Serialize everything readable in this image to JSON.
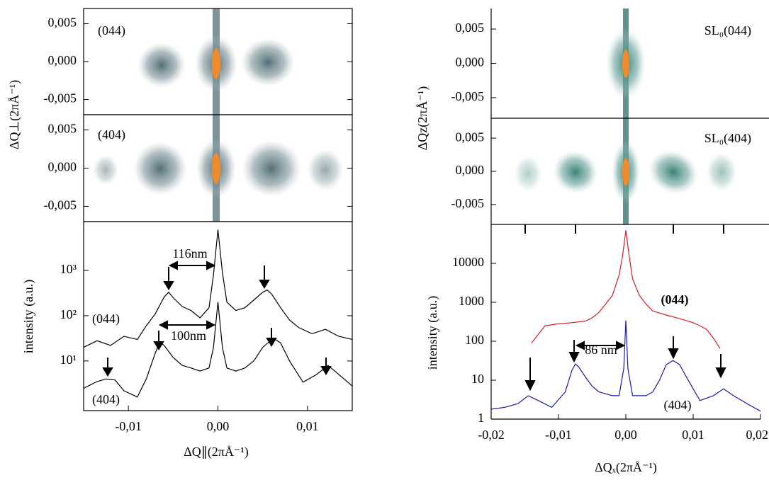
{
  "chart_data": [
    {
      "type": "map",
      "label": "(044)",
      "ylabel": "ΔQ⊥(2πÅ⁻¹)",
      "ylim": [
        -0.007,
        0.007
      ],
      "yticks": [
        {
          "value": 0.005,
          "label": "0,005"
        },
        {
          "value": 0,
          "label": "0,000"
        },
        {
          "value": -0.005,
          "label": "-0,005"
        }
      ]
    },
    {
      "type": "map",
      "label": "(404)",
      "ylim": [
        -0.007,
        0.007
      ],
      "yticks": [
        {
          "value": 0.005,
          "label": "0,005"
        },
        {
          "value": 0,
          "label": "0,000"
        },
        {
          "value": -0.005,
          "label": "-0,005"
        }
      ]
    },
    {
      "type": "line",
      "log_y": true,
      "xlabel": "ΔQ∥(2πÅ⁻¹)",
      "ylabel": "intensity (a.u.)",
      "xlim": [
        -0.015,
        0.015
      ],
      "xticks": [
        {
          "value": -0.01,
          "label": "-0,01"
        },
        {
          "value": 0,
          "label": "0,00"
        },
        {
          "value": 0.01,
          "label": "0,01"
        }
      ],
      "ylim": [
        0.8,
        12000
      ],
      "yticks": [
        {
          "value": 10,
          "label": "10¹"
        },
        {
          "value": 100,
          "label": "10²"
        },
        {
          "value": 1000,
          "label": "10³"
        }
      ],
      "annotations": [
        "116nm",
        "100nm"
      ],
      "series": [
        {
          "name": "(044)",
          "color": "#000000",
          "x": [
            -0.015,
            -0.0135,
            -0.012,
            -0.0105,
            -0.009,
            -0.008,
            -0.007,
            -0.006,
            -0.0055,
            -0.005,
            -0.004,
            -0.003,
            -0.002,
            -0.001,
            -0.0005,
            0,
            0.0005,
            0.001,
            0.002,
            0.003,
            0.004,
            0.005,
            0.0055,
            0.006,
            0.007,
            0.008,
            0.009,
            0.0105,
            0.012,
            0.0135,
            0.015
          ],
          "values": [
            20,
            28,
            22,
            35,
            30,
            60,
            110,
            260,
            330,
            250,
            160,
            130,
            90,
            150,
            800,
            8000,
            900,
            200,
            130,
            150,
            220,
            330,
            370,
            300,
            150,
            80,
            55,
            40,
            50,
            35,
            30
          ]
        },
        {
          "name": "(404)",
          "color": "#000000",
          "x": [
            -0.015,
            -0.0135,
            -0.0125,
            -0.0115,
            -0.0105,
            -0.009,
            -0.008,
            -0.007,
            -0.0065,
            -0.006,
            -0.005,
            -0.004,
            -0.003,
            -0.002,
            -0.001,
            -0.0005,
            0,
            0.0005,
            0.001,
            0.002,
            0.003,
            0.004,
            0.005,
            0.0062,
            0.007,
            0.008,
            0.0095,
            0.011,
            0.0123,
            0.0135,
            0.015
          ],
          "values": [
            2.5,
            3.5,
            4,
            3.8,
            2.2,
            1.6,
            4,
            15,
            26,
            22,
            12,
            8,
            7,
            6,
            7,
            20,
            200,
            20,
            7,
            6,
            7,
            10,
            20,
            32,
            25,
            10,
            3.4,
            5,
            8,
            5,
            2.8
          ]
        }
      ]
    },
    {
      "type": "map",
      "label": "SL₀(044)",
      "ylabel": "ΔQz(2πÅ⁻¹)",
      "ylim": [
        -0.008,
        0.008
      ],
      "yticks": [
        {
          "value": 0.005,
          "label": "0,005"
        },
        {
          "value": 0,
          "label": "0,000"
        },
        {
          "value": -0.005,
          "label": "-0,005"
        }
      ]
    },
    {
      "type": "map",
      "label": "SL₀(404)",
      "ylim": [
        -0.008,
        0.008
      ],
      "yticks": [
        {
          "value": 0.005,
          "label": "0,005"
        },
        {
          "value": 0,
          "label": "0,000"
        },
        {
          "value": -0.005,
          "label": "-0,005"
        }
      ]
    },
    {
      "type": "line",
      "log_y": true,
      "xlabel": "ΔQₓ(2πÅ⁻¹)",
      "ylabel": "intensity (a.u.)",
      "xlim": [
        -0.02,
        0.02
      ],
      "xticks": [
        {
          "value": -0.02,
          "label": "-0,02"
        },
        {
          "value": -0.01,
          "label": "-0,01"
        },
        {
          "value": 0,
          "label": "0,00"
        },
        {
          "value": 0.01,
          "label": "0,01"
        },
        {
          "value": 0.02,
          "label": "0,02"
        }
      ],
      "ylim": [
        1,
        100000
      ],
      "yticks": [
        1,
        10,
        100,
        1000,
        10000
      ],
      "annotations": [
        "86 nm"
      ],
      "series": [
        {
          "name": "(044)",
          "color": "#d62020",
          "x": [
            -0.014,
            -0.013,
            -0.012,
            -0.01,
            -0.008,
            -0.006,
            -0.005,
            -0.004,
            -0.003,
            -0.002,
            -0.001,
            -0.0005,
            0,
            0.0005,
            0.001,
            0.002,
            0.003,
            0.004,
            0.006,
            0.008,
            0.01,
            0.011,
            0.012,
            0.013,
            0.014
          ],
          "values": [
            90,
            150,
            250,
            280,
            300,
            330,
            400,
            550,
            900,
            1500,
            5000,
            15000,
            70000,
            15000,
            4000,
            1500,
            900,
            600,
            470,
            380,
            300,
            250,
            200,
            120,
            65
          ]
        },
        {
          "name": "(404)",
          "color": "#1a1aa8",
          "x": [
            -0.02,
            -0.018,
            -0.016,
            -0.0145,
            -0.013,
            -0.011,
            -0.009,
            -0.008,
            -0.0075,
            -0.007,
            -0.006,
            -0.005,
            -0.004,
            -0.002,
            -0.001,
            -0.0003,
            0,
            0.0003,
            0.001,
            0.002,
            0.003,
            0.004,
            0.005,
            0.006,
            0.007,
            0.008,
            0.009,
            0.011,
            0.013,
            0.0145,
            0.016,
            0.018,
            0.02
          ],
          "values": [
            1.8,
            2,
            2.5,
            4,
            3,
            2,
            5,
            18,
            26,
            22,
            12,
            7,
            5,
            4,
            4,
            20,
            340,
            20,
            4,
            4,
            4,
            5,
            10,
            25,
            32,
            25,
            12,
            3,
            4,
            6,
            4,
            2.5,
            1.6
          ]
        }
      ]
    }
  ]
}
